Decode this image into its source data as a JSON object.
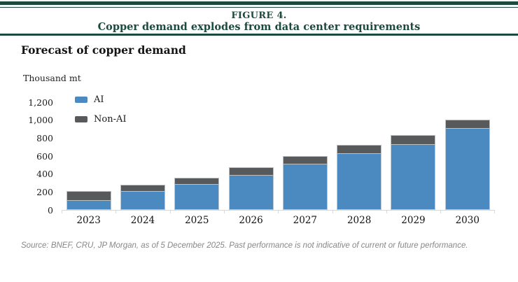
{
  "header": {
    "figure_label": "FIGURE 4.",
    "title": "Copper demand explodes from data center requirements"
  },
  "chart": {
    "subtitle": "Forecast of copper demand",
    "unit_label": "Thousand mt"
  },
  "chart_data": {
    "type": "bar",
    "stacked": true,
    "title": "Forecast of copper demand",
    "ylabel": "Thousand mt",
    "categories": [
      "2023",
      "2024",
      "2025",
      "2026",
      "2027",
      "2028",
      "2029",
      "2030"
    ],
    "series": [
      {
        "name": "AI",
        "color": "#4a8ac1",
        "values": [
          100,
          200,
          280,
          385,
          510,
          625,
          725,
          905
        ]
      },
      {
        "name": "Non-AI",
        "color": "#58595b",
        "values": [
          110,
          80,
          80,
          90,
          90,
          100,
          110,
          105
        ]
      }
    ],
    "totals": [
      210,
      280,
      360,
      475,
      600,
      725,
      835,
      1010
    ],
    "ylim": [
      0,
      1200
    ],
    "ytick_step": 200,
    "yticks": [
      "0",
      "200",
      "400",
      "600",
      "800",
      "1,000",
      "1,200"
    ],
    "grid": false,
    "legend_position": "upper-left",
    "colors": {
      "ai_blue": "#4a8ac1",
      "non_ai_gray": "#58595b",
      "axis_gray": "#d6d8da",
      "header_teal": "#1b4a3f"
    }
  },
  "footer": {
    "source": "Source: BNEF, CRU, JP Morgan, as of 5 December 2025. Past performance is not indicative of current or future performance."
  }
}
